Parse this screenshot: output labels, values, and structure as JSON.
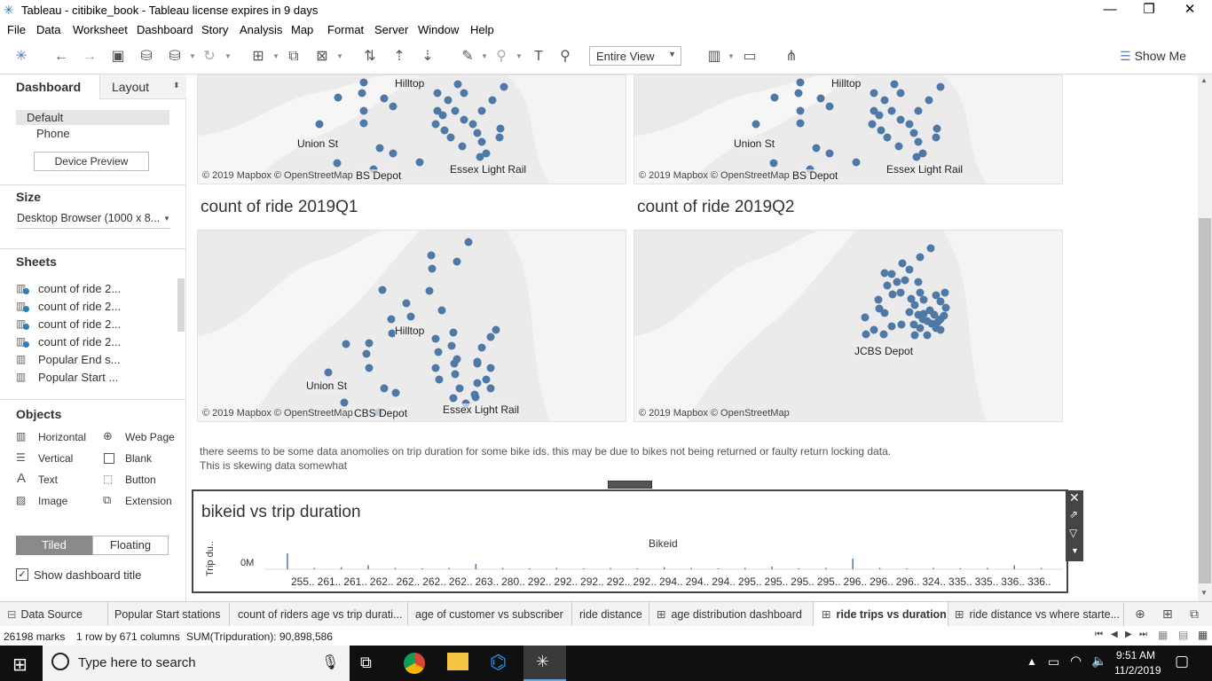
{
  "window": {
    "title": "Tableau - citibike_book - Tableau license expires in 9 days",
    "minimize": "—",
    "restore": "❐",
    "close": "✕"
  },
  "menu": [
    "File",
    "Data",
    "Worksheet",
    "Dashboard",
    "Story",
    "Analysis",
    "Map",
    "Format",
    "Server",
    "Window",
    "Help"
  ],
  "toolbar": {
    "fit_value": "Entire View",
    "show_me": "Show Me"
  },
  "left_panel": {
    "tab_dashboard": "Dashboard",
    "tab_layout": "Layout",
    "devices": [
      "Default",
      "Phone"
    ],
    "device_preview_button": "Device Preview",
    "size_heading": "Size",
    "size_value": "Desktop Browser (1000 x 8...",
    "sheets_heading": "Sheets",
    "sheets": [
      {
        "label": "count of ride 2...",
        "used": true
      },
      {
        "label": "count of ride 2...",
        "used": true
      },
      {
        "label": "count of ride 2...",
        "used": true
      },
      {
        "label": "count of ride 2...",
        "used": true
      },
      {
        "label": "Popular End s...",
        "used": false
      },
      {
        "label": "Popular Start ...",
        "used": false
      }
    ],
    "objects_heading": "Objects",
    "objects": {
      "horizontal": "Horizontal",
      "web_page": "Web Page",
      "vertical": "Vertical",
      "blank": "Blank",
      "text": "Text",
      "button": "Button",
      "image": "Image",
      "extension": "Extension"
    },
    "tiled": "Tiled",
    "floating": "Floating",
    "show_title": "Show dashboard title"
  },
  "dashboard": {
    "map_attribution": "© 2019 Mapbox © OpenStreetMap",
    "top_left_labels": {
      "hilltop": "Hilltop",
      "union": "Union St",
      "depot": "BS Depot",
      "essex": "Essex Light Rail"
    },
    "top_right_labels": {
      "hilltop": "Hilltop",
      "union": "Union St",
      "depot": "BS Depot",
      "essex": "Essex Light Rail"
    },
    "title_q1": "count of ride 2019Q1",
    "title_q2": "count of ride 2019Q2",
    "q1_labels": {
      "hilltop": "Hilltop",
      "union": "Union St",
      "depot": "CBS Depot",
      "essex": "Essex Light Rail"
    },
    "q2_labels": {
      "depot": "JCBS Depot"
    },
    "note_line1": "there seems to be some data anomolies on trip duration for some bike ids. this may be due to bikes not being returned or faulty return locking data.",
    "note_line2": "This is skewing data somewhat",
    "chart_title": "bikeid vs trip duration",
    "chart_data": {
      "type": "bar",
      "title": "bikeid vs trip duration",
      "xlabel": "Bikeid",
      "ylabel": "Trip du..",
      "y_tick": "0M",
      "x_ticks": [
        "255..",
        "261..",
        "261..",
        "262..",
        "262..",
        "262..",
        "262..",
        "263..",
        "280..",
        "292..",
        "292..",
        "292..",
        "292..",
        "292..",
        "294..",
        "294..",
        "294..",
        "295..",
        "295..",
        "295..",
        "295..",
        "296..",
        "296..",
        "296..",
        "324..",
        "335..",
        "335..",
        "336..",
        "336.."
      ],
      "series": [
        {
          "values": [
            1.2,
            0.1,
            0.15,
            0.3,
            0.1,
            0.05,
            0.1,
            0.4,
            0.1,
            0.05,
            0.1,
            0.05,
            0.1,
            0.05,
            0.15,
            0.1,
            0.05,
            0.1,
            0.2,
            0.05,
            0.1,
            0.8,
            0.1,
            0.05,
            0.1,
            0.05,
            0.1,
            0.3,
            0.1
          ]
        }
      ]
    }
  },
  "tabs": [
    {
      "label": "Data Source",
      "icon": "database-icon",
      "active": false
    },
    {
      "label": "Popular Start stations",
      "icon": "",
      "active": false
    },
    {
      "label": "count of riders age vs trip durati...",
      "icon": "",
      "active": false
    },
    {
      "label": "age of customer vs subscriber",
      "icon": "",
      "active": false
    },
    {
      "label": "ride distance",
      "icon": "",
      "active": false
    },
    {
      "label": "age distribution dashboard",
      "icon": "dashboard-icon",
      "active": false
    },
    {
      "label": "ride trips vs duration",
      "icon": "dashboard-icon",
      "active": true
    },
    {
      "label": "ride distance vs where starte...",
      "icon": "dashboard-icon",
      "active": false
    }
  ],
  "status": {
    "marks": "26198 marks",
    "rows": "1 row by 671 columns",
    "sum": "SUM(Tripduration): 90,898,586"
  },
  "taskbar": {
    "search_placeholder": "Type here to search",
    "time": "9:51 AM",
    "date": "11/2/2019"
  }
}
